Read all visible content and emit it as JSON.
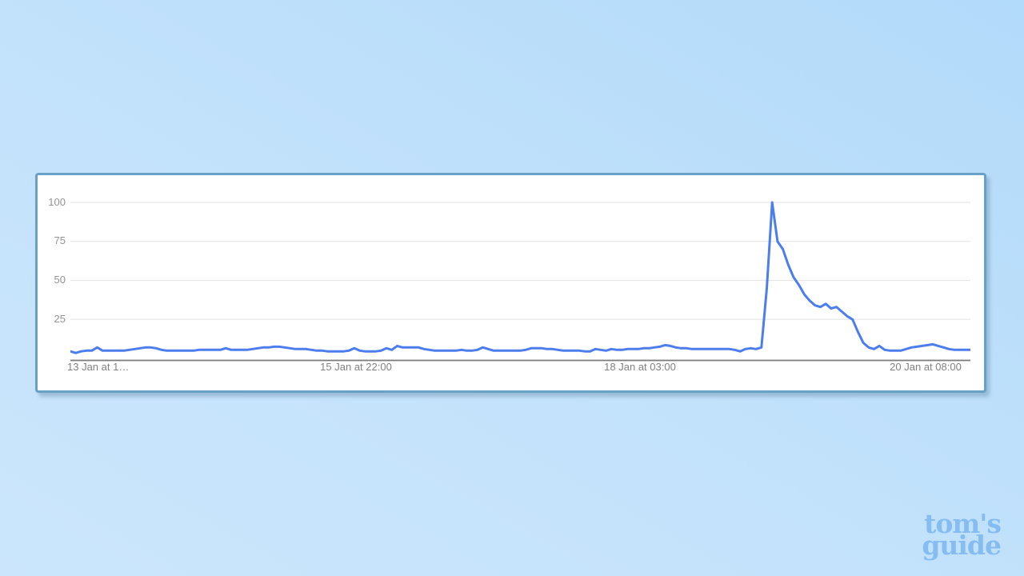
{
  "page": {
    "background_gradient": [
      "#cbe6fc",
      "#b2dafa"
    ]
  },
  "card": {
    "border_color": "#67a1c5",
    "background": "#ffffff"
  },
  "watermark": {
    "line1": "tom's",
    "line2": "guide",
    "color": "#85bdf2"
  },
  "chart_data": {
    "type": "line",
    "title": "",
    "xlabel": "",
    "ylabel": "",
    "legend": "none",
    "grid": "horizontal",
    "ylim": [
      0,
      100
    ],
    "y_ticks": [
      100,
      75,
      50,
      25
    ],
    "y_tick_labels": [
      "100",
      "75",
      "50",
      "25"
    ],
    "x_tick_labels": [
      "13 Jan at 1…",
      "15 Jan at 22:00",
      "18 Jan at 03:00",
      "20 Jan at 08:00"
    ],
    "x_tick_indices": [
      0,
      53,
      106,
      159
    ],
    "line_color": "#4b7dee",
    "gridline_color": "#e8e8e8",
    "axis_color": "#7a7a7a",
    "values": [
      4.5,
      3.5,
      4.5,
      5,
      5,
      7,
      5,
      5,
      5,
      5,
      5,
      5.5,
      6,
      6.5,
      7,
      7,
      6.5,
      5.5,
      5,
      5,
      5,
      5,
      5,
      5,
      5.5,
      5.5,
      5.5,
      5.5,
      5.5,
      6.5,
      5.5,
      5.5,
      5.5,
      5.5,
      6,
      6.5,
      7,
      7,
      7.5,
      7.5,
      7,
      6.5,
      6,
      6,
      6,
      5.5,
      5,
      5,
      4.5,
      4.5,
      4.5,
      4.5,
      5,
      6.5,
      5,
      4.5,
      4.5,
      4.5,
      5,
      6.5,
      5.5,
      8,
      7,
      7,
      7,
      7,
      6,
      5.5,
      5,
      5,
      5,
      5,
      5,
      5.5,
      5,
      5,
      5.5,
      7,
      6,
      5,
      5,
      5,
      5,
      5,
      5,
      5.5,
      6.5,
      6.5,
      6.5,
      6,
      6,
      5.5,
      5,
      5,
      5,
      5,
      4.5,
      4.5,
      6,
      5.5,
      5,
      6,
      5.5,
      5.5,
      6,
      6,
      6,
      6.5,
      6.5,
      7,
      7.5,
      8.5,
      8,
      7,
      6.5,
      6.5,
      6,
      6,
      6,
      6,
      6,
      6,
      6,
      6,
      5.5,
      4.5,
      6,
      6.5,
      6,
      7,
      45,
      100,
      75,
      70,
      60,
      52,
      47,
      41,
      37,
      34,
      33,
      35,
      32,
      33,
      30,
      27,
      25,
      17,
      10,
      7,
      6,
      8,
      5.5,
      5,
      5,
      5,
      6,
      7,
      7.5,
      8,
      8.5,
      9,
      8,
      7,
      6,
      5.5,
      5.5,
      5.5,
      5.5
    ]
  }
}
